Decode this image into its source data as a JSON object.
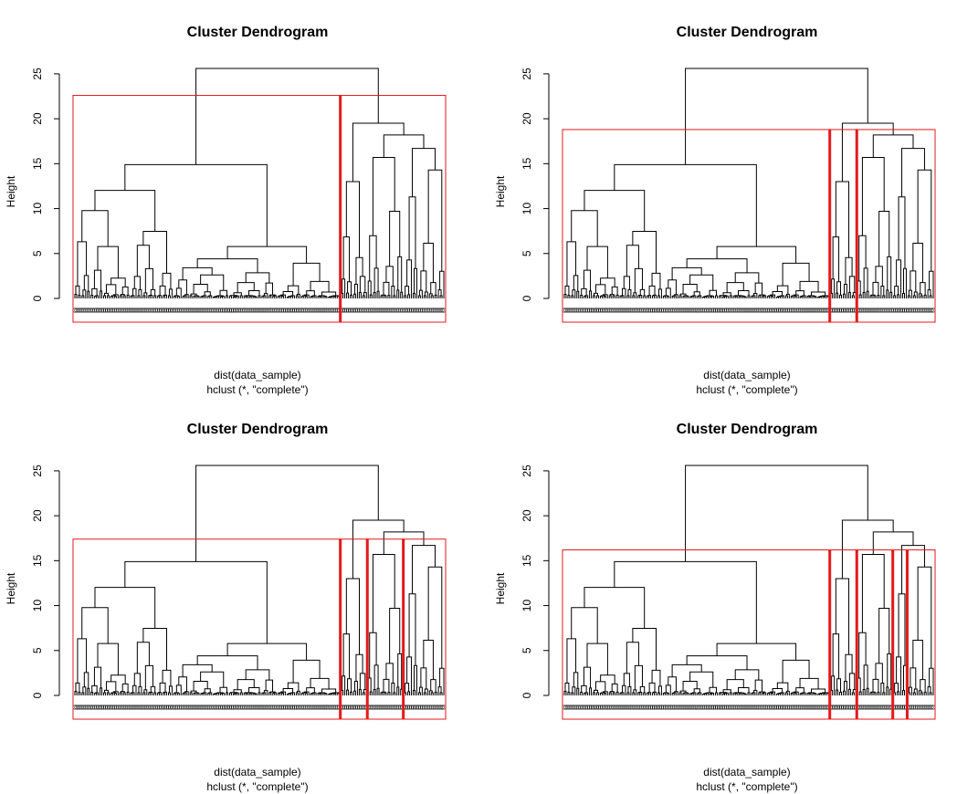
{
  "colors": {
    "tree": "#000000",
    "box": "#e41a1c",
    "cut": "#e41a1c",
    "background": "#ffffff"
  },
  "panels": [
    {
      "title": "Cluster Dendrogram",
      "ylabel": "Height",
      "xlabel": "dist(data_sample)",
      "sub": "hclust (*, \"complete\")"
    },
    {
      "title": "Cluster Dendrogram",
      "ylabel": "Height",
      "xlabel": "dist(data_sample)",
      "sub": "hclust (*, \"complete\")"
    },
    {
      "title": "Cluster Dendrogram",
      "ylabel": "Height",
      "xlabel": "dist(data_sample)",
      "sub": "hclust (*, \"complete\")"
    },
    {
      "title": "Cluster Dendrogram",
      "ylabel": "Height",
      "xlabel": "dist(data_sample)",
      "sub": "hclust (*, \"complete\")"
    }
  ],
  "chart_data": [
    {
      "type": "dendrogram",
      "k": 2,
      "ylim": [
        0,
        25.6
      ],
      "yticks": [
        0,
        5,
        10,
        15,
        20,
        25
      ],
      "n_leaves": 206,
      "root_height": 25.6,
      "main_merges": [
        {
          "label": "left",
          "height": 14.9
        },
        {
          "label": "right",
          "height": 19.5
        },
        {
          "label": "right-sub",
          "height": 18.2
        },
        {
          "label": "right-sub2",
          "height": 16.7
        }
      ],
      "rect_hclust_boxes": [
        {
          "leaves": [
            1,
            148
          ]
        },
        {
          "leaves": [
            149,
            206
          ]
        }
      ],
      "box_top_height": 22.6
    },
    {
      "type": "dendrogram",
      "k": 3,
      "ylim": [
        0,
        25.6
      ],
      "yticks": [
        0,
        5,
        10,
        15,
        20,
        25
      ],
      "n_leaves": 206,
      "root_height": 25.6,
      "rect_hclust_boxes": [
        {
          "leaves": [
            1,
            148
          ]
        },
        {
          "leaves": [
            149,
            163
          ]
        },
        {
          "leaves": [
            164,
            206
          ]
        }
      ],
      "box_top_height": 18.8
    },
    {
      "type": "dendrogram",
      "k": 4,
      "ylim": [
        0,
        25.6
      ],
      "yticks": [
        0,
        5,
        10,
        15,
        20,
        25
      ],
      "n_leaves": 206,
      "root_height": 25.6,
      "rect_hclust_boxes": [
        {
          "leaves": [
            1,
            148
          ]
        },
        {
          "leaves": [
            149,
            163
          ]
        },
        {
          "leaves": [
            164,
            183
          ]
        },
        {
          "leaves": [
            184,
            206
          ]
        }
      ],
      "box_top_height": 17.4
    },
    {
      "type": "dendrogram",
      "k": 5,
      "ylim": [
        0,
        25.6
      ],
      "yticks": [
        0,
        5,
        10,
        15,
        20,
        25
      ],
      "n_leaves": 206,
      "root_height": 25.6,
      "rect_hclust_boxes": [
        {
          "leaves": [
            1,
            148
          ]
        },
        {
          "leaves": [
            149,
            163
          ]
        },
        {
          "leaves": [
            164,
            183
          ]
        },
        {
          "leaves": [
            184,
            191
          ]
        },
        {
          "leaves": [
            192,
            206
          ]
        }
      ],
      "box_top_height": 16.2
    }
  ]
}
